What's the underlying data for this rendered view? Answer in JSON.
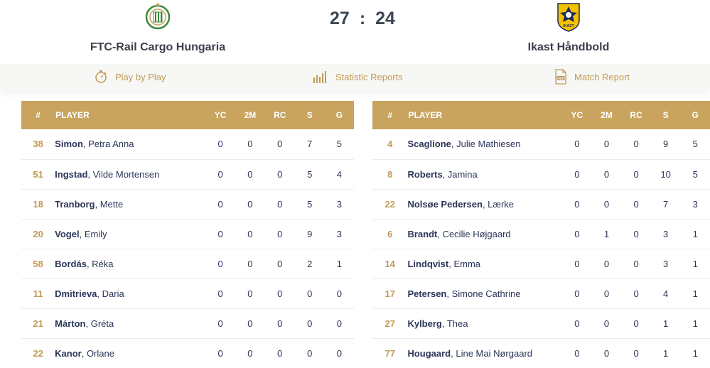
{
  "match": {
    "home_team": "FTC-Rail Cargo Hungaria",
    "away_team": "Ikast Håndbold",
    "home_score": "27",
    "away_score": "24",
    "separator": ":",
    "home_logo_text": "",
    "away_logo_text": "IKAST"
  },
  "tabs": [
    {
      "label": "Play by Play",
      "icon": "stopwatch-icon"
    },
    {
      "label": "Statistic Reports",
      "icon": "bar-chart-icon"
    },
    {
      "label": "Match Report",
      "icon": "pdf-icon"
    }
  ],
  "columns": {
    "num": "#",
    "player": "PLAYER",
    "yc": "YC",
    "tm": "2M",
    "rc": "RC",
    "s": "S",
    "g": "G"
  },
  "colors": {
    "accent": "#c8a45f",
    "navy": "#2b3558"
  },
  "home_players": [
    {
      "num": "38",
      "last": "Simon",
      "first": ", Petra Anna",
      "yc": "0",
      "tm": "0",
      "rc": "0",
      "s": "7",
      "g": "5"
    },
    {
      "num": "51",
      "last": "Ingstad",
      "first": ", Vilde Mortensen",
      "yc": "0",
      "tm": "0",
      "rc": "0",
      "s": "5",
      "g": "4"
    },
    {
      "num": "18",
      "last": "Tranborg",
      "first": ", Mette",
      "yc": "0",
      "tm": "0",
      "rc": "0",
      "s": "5",
      "g": "3"
    },
    {
      "num": "20",
      "last": "Vogel",
      "first": ", Emily",
      "yc": "0",
      "tm": "0",
      "rc": "0",
      "s": "9",
      "g": "3"
    },
    {
      "num": "58",
      "last": "Bordás",
      "first": ", Réka",
      "yc": "0",
      "tm": "0",
      "rc": "0",
      "s": "2",
      "g": "1"
    },
    {
      "num": "11",
      "last": "Dmitrieva",
      "first": ", Daria",
      "yc": "0",
      "tm": "0",
      "rc": "0",
      "s": "0",
      "g": "0"
    },
    {
      "num": "21",
      "last": "Márton",
      "first": ", Gréta",
      "yc": "0",
      "tm": "0",
      "rc": "0",
      "s": "0",
      "g": "0"
    },
    {
      "num": "22",
      "last": "Kanor",
      "first": ", Orlane",
      "yc": "0",
      "tm": "0",
      "rc": "0",
      "s": "0",
      "g": "0"
    }
  ],
  "away_players": [
    {
      "num": "4",
      "last": "Scaglione",
      "first": ", Julie Mathiesen",
      "yc": "0",
      "tm": "0",
      "rc": "0",
      "s": "9",
      "g": "5"
    },
    {
      "num": "8",
      "last": "Roberts",
      "first": ", Jamina",
      "yc": "0",
      "tm": "0",
      "rc": "0",
      "s": "10",
      "g": "5"
    },
    {
      "num": "22",
      "last": "Nolsøe Pedersen",
      "first": ", Lærke",
      "yc": "0",
      "tm": "0",
      "rc": "0",
      "s": "7",
      "g": "3"
    },
    {
      "num": "6",
      "last": "Brandt",
      "first": ", Cecilie Højgaard",
      "yc": "0",
      "tm": "1",
      "rc": "0",
      "s": "3",
      "g": "1"
    },
    {
      "num": "14",
      "last": "Lindqvist",
      "first": ", Emma",
      "yc": "0",
      "tm": "0",
      "rc": "0",
      "s": "3",
      "g": "1"
    },
    {
      "num": "17",
      "last": "Petersen",
      "first": ", Simone Cathrine",
      "yc": "0",
      "tm": "0",
      "rc": "0",
      "s": "4",
      "g": "1"
    },
    {
      "num": "27",
      "last": "Kylberg",
      "first": ", Thea",
      "yc": "0",
      "tm": "0",
      "rc": "0",
      "s": "1",
      "g": "1"
    },
    {
      "num": "77",
      "last": "Hougaard",
      "first": ", Line Mai Nørgaard",
      "yc": "0",
      "tm": "0",
      "rc": "0",
      "s": "1",
      "g": "1"
    }
  ]
}
